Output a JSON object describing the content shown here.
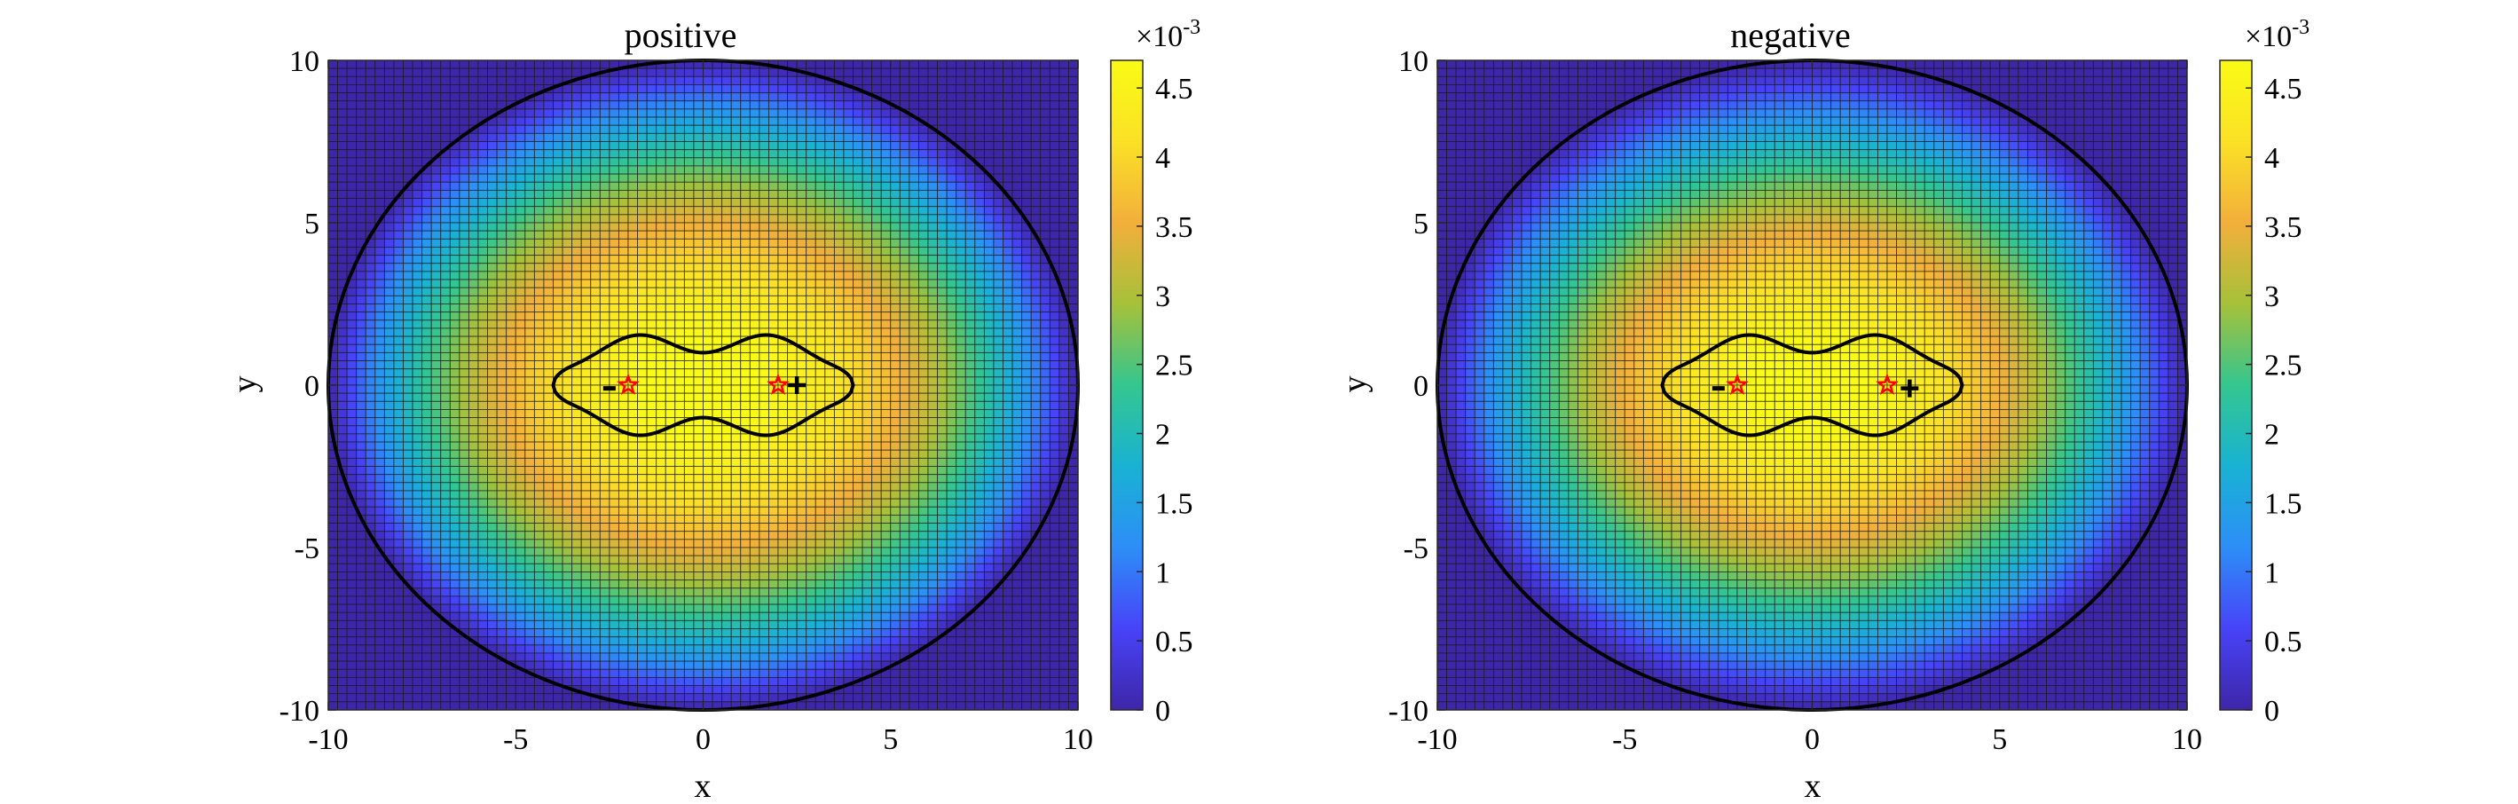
{
  "colormap": [
    "#3e26a8",
    "#4743f8",
    "#2d8ef7",
    "#19b2d3",
    "#34c68f",
    "#a6c13a",
    "#f2af3b",
    "#fbe126",
    "#f9fb15"
  ],
  "chart_data": [
    {
      "type": "heatmap",
      "title": "positive",
      "xlabel": "x",
      "ylabel": "y",
      "xlim": [
        -10,
        10
      ],
      "ylim": [
        -10,
        10
      ],
      "xticks": [
        "-10",
        "-5",
        "0",
        "5",
        "10"
      ],
      "yticks": [
        "-10",
        "-5",
        "0",
        "5",
        "10"
      ],
      "grid": true,
      "colorbar": {
        "clim": [
          0,
          0.0047
        ],
        "ticks": [
          "0",
          "0.5",
          "1",
          "1.5",
          "2",
          "2.5",
          "3",
          "3.5",
          "4",
          "4.5"
        ],
        "exponent_label": "×10",
        "exponent": "-3",
        "placement": "right"
      },
      "field": {
        "peak": 0.0047,
        "center": [
          0,
          0
        ],
        "sigma_x": 7.0,
        "sigma_y": 6.5,
        "boundary_radius": 10
      },
      "boundary_contour": {
        "shape": "circle",
        "center": [
          0,
          0
        ],
        "radius": 10
      },
      "inner_contour": {
        "shape": "peanut",
        "x_extent": [
          -4,
          4
        ],
        "y_extent": [
          -1.6,
          1.6
        ],
        "waist": 1.0
      },
      "markers": [
        {
          "kind": "star",
          "color": "#ff0000",
          "x": -2.0,
          "y": 0.0
        },
        {
          "kind": "star",
          "color": "#ff0000",
          "x": 2.0,
          "y": 0.0
        },
        {
          "kind": "minus",
          "color": "#000000",
          "x": -2.5,
          "y": -0.1
        },
        {
          "kind": "plus",
          "color": "#000000",
          "x": 2.5,
          "y": 0.0
        }
      ]
    },
    {
      "type": "heatmap",
      "title": "negative",
      "xlabel": "x",
      "ylabel": "y",
      "xlim": [
        -10,
        10
      ],
      "ylim": [
        -10,
        10
      ],
      "xticks": [
        "-10",
        "-5",
        "0",
        "5",
        "10"
      ],
      "yticks": [
        "-10",
        "-5",
        "0",
        "5",
        "10"
      ],
      "grid": true,
      "colorbar": {
        "clim": [
          0,
          0.0047
        ],
        "ticks": [
          "0",
          "0.5",
          "1",
          "1.5",
          "2",
          "2.5",
          "3",
          "3.5",
          "4",
          "4.5"
        ],
        "exponent_label": "×10",
        "exponent": "-3",
        "placement": "right"
      },
      "field": {
        "peak": 0.0047,
        "center": [
          0,
          0
        ],
        "sigma_x": 6.6,
        "sigma_y": 6.0,
        "boundary_radius": 10
      },
      "boundary_contour": {
        "shape": "circle",
        "center": [
          0,
          0
        ],
        "radius": 10
      },
      "inner_contour": {
        "shape": "peanut",
        "x_extent": [
          -4,
          4
        ],
        "y_extent": [
          -1.6,
          1.6
        ],
        "waist": 1.0
      },
      "markers": [
        {
          "kind": "star",
          "color": "#ff0000",
          "x": -2.0,
          "y": 0.0
        },
        {
          "kind": "star",
          "color": "#ff0000",
          "x": 2.0,
          "y": 0.0
        },
        {
          "kind": "minus",
          "color": "#000000",
          "x": -2.5,
          "y": -0.1
        },
        {
          "kind": "plus",
          "color": "#000000",
          "x": 2.6,
          "y": -0.1
        }
      ]
    }
  ]
}
